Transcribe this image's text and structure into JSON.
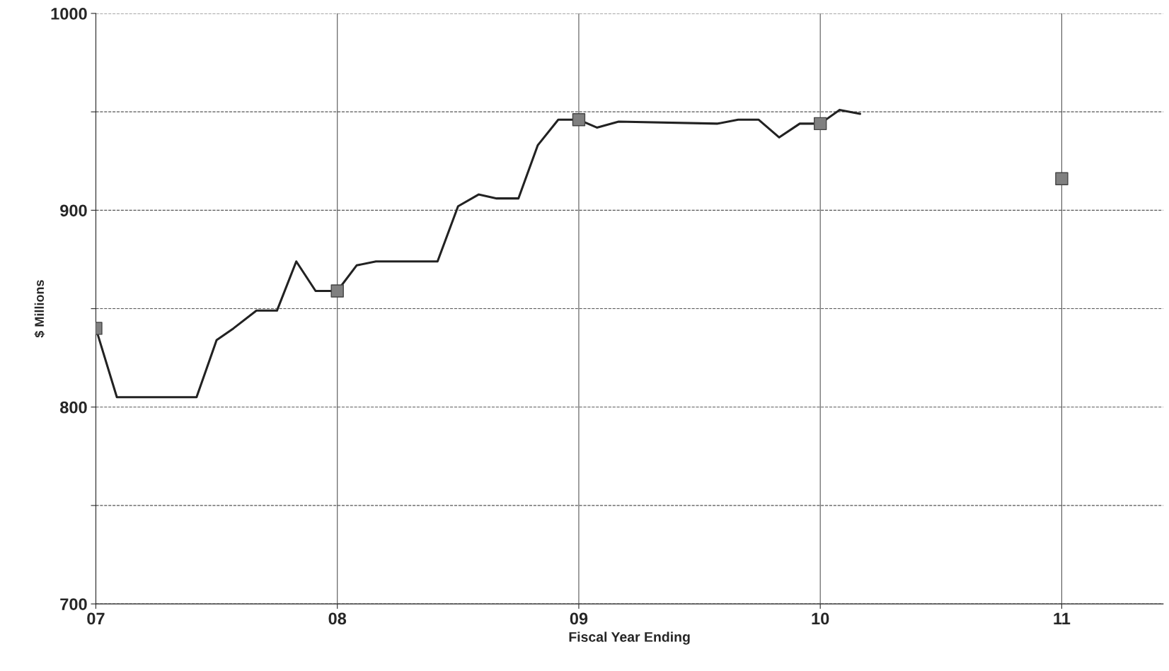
{
  "chart_data": {
    "type": "line",
    "xlabel": "Fiscal Year Ending",
    "ylabel": "$ Millions",
    "xlim": [
      7,
      11.42
    ],
    "xticks": [
      {
        "value": 7,
        "label": "07"
      },
      {
        "value": 8,
        "label": "08"
      },
      {
        "value": 9,
        "label": "09"
      },
      {
        "value": 10,
        "label": "10"
      },
      {
        "value": 11,
        "label": "11"
      }
    ],
    "ylim": [
      700,
      1000
    ],
    "yticks": [
      700,
      {
        "value": 750,
        "label": null
      },
      800,
      {
        "value": 850,
        "label": null
      },
      900,
      {
        "value": 950,
        "label": null
      },
      1000
    ],
    "grid": true,
    "legend": false,
    "series": [
      {
        "color": "#222222",
        "marker": "none",
        "line_style": "solid",
        "x": [
          7.0,
          7.087,
          7.417,
          7.5,
          7.57,
          7.665,
          7.75,
          7.83,
          7.91,
          8.0,
          8.08,
          8.16,
          8.415,
          8.5,
          8.585,
          8.66,
          8.75,
          8.83,
          8.915,
          9.0,
          9.075,
          9.165,
          9.575,
          9.66,
          9.745,
          9.83,
          9.915,
          10.0,
          10.08,
          10.165
        ],
        "values": [
          840,
          805,
          805,
          834,
          840,
          849,
          849,
          874,
          859,
          859,
          872,
          874,
          874,
          902,
          908,
          906,
          906,
          933,
          946,
          946,
          942,
          945,
          944,
          946,
          946,
          937,
          944,
          944,
          951,
          949
        ]
      },
      {
        "type": "scatter",
        "color": "#808080",
        "marker": "square",
        "x": [
          7,
          8,
          9,
          10,
          11
        ],
        "values": [
          840,
          859,
          946,
          944,
          916
        ]
      }
    ]
  }
}
